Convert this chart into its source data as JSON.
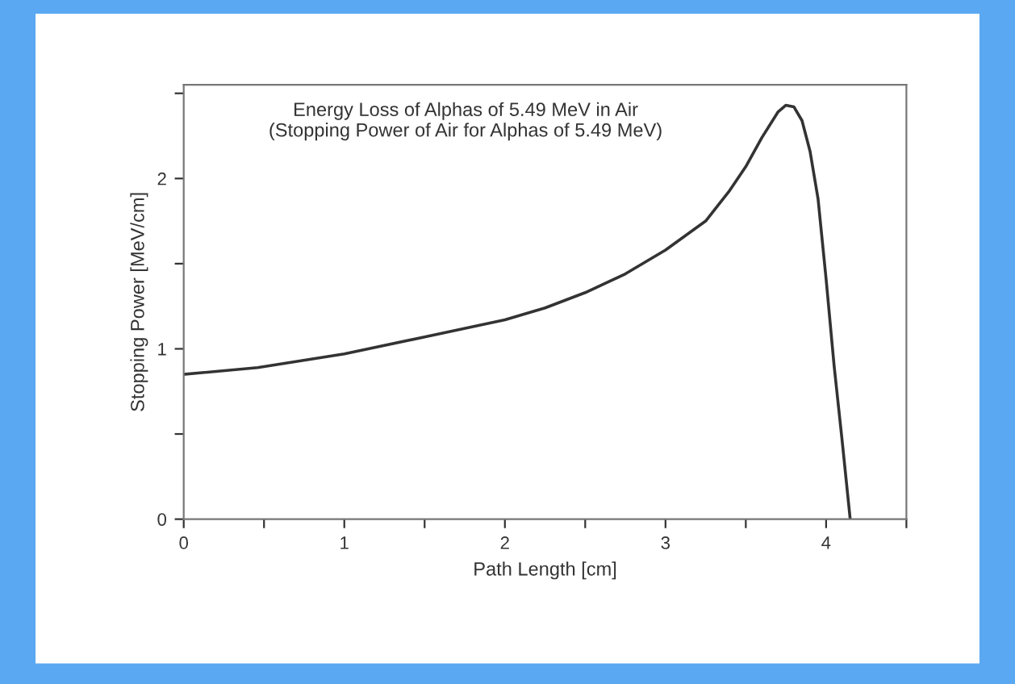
{
  "chart_data": {
    "type": "line",
    "title": "Energy Loss of Alphas of 5.49 MeV in Air\n(Stopping Power of Air for Alphas of 5.49 MeV)",
    "xlabel": "Path Length [cm]",
    "ylabel": "Stopping Power [MeV/cm]",
    "series": [
      {
        "color": "#333333",
        "x": [
          0,
          0.46,
          1,
          1.5,
          2,
          2.25,
          2.5,
          2.75,
          3,
          3.25,
          3.4,
          3.5,
          3.6,
          3.7,
          3.75,
          3.8,
          3.85,
          3.9,
          3.95,
          4.0,
          4.05,
          4.1,
          4.15
        ],
        "values": [
          0.85,
          0.89,
          0.97,
          1.07,
          1.17,
          1.24,
          1.33,
          1.44,
          1.58,
          1.75,
          1.93,
          2.07,
          2.24,
          2.39,
          2.43,
          2.42,
          2.34,
          2.16,
          1.88,
          1.41,
          0.9,
          0.46,
          0
        ]
      }
    ],
    "xlim": [
      0,
      4.5
    ],
    "ylim": [
      0,
      2.55
    ],
    "xticks": [
      0,
      {
        "value": 0.5,
        "label": null
      },
      1,
      {
        "value": 1.5,
        "label": null
      },
      2,
      {
        "value": 2.5,
        "label": null
      },
      3,
      {
        "value": 3.5,
        "label": null
      },
      4,
      {
        "value": 4.5,
        "label": null
      }
    ],
    "yticks": [
      0,
      {
        "value": 0.5,
        "label": null
      },
      1,
      {
        "value": 1.5,
        "label": null
      },
      2,
      {
        "value": 2.5,
        "label": null
      }
    ],
    "grid": false,
    "legend": false,
    "marker": "none",
    "line_style": "solid"
  }
}
